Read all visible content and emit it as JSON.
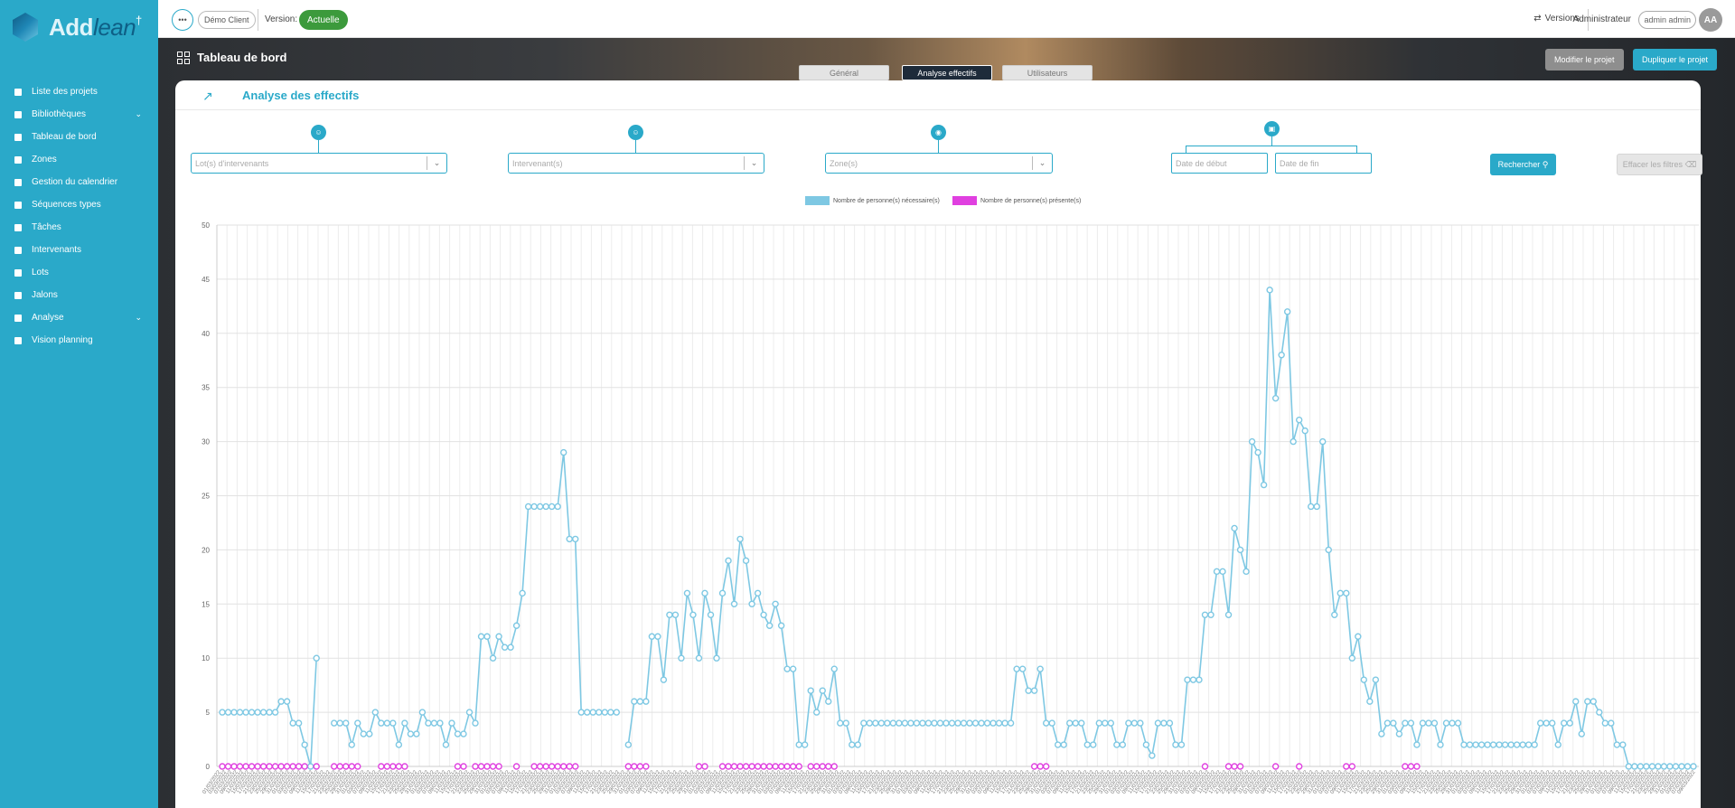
{
  "brand": {
    "part1": "Add",
    "part2": "lean"
  },
  "sidebar": {
    "items": [
      {
        "label": "Liste des projets",
        "icon": "list-icon"
      },
      {
        "label": "Bibliothèques",
        "icon": "library-icon",
        "expand": true
      },
      {
        "label": "Tableau de bord",
        "icon": "dashboard-icon"
      },
      {
        "label": "Zones",
        "icon": "location-icon"
      },
      {
        "label": "Gestion du calendrier",
        "icon": "calendar-icon"
      },
      {
        "label": "Séquences types",
        "icon": "sequence-icon"
      },
      {
        "label": "Tâches",
        "icon": "task-icon"
      },
      {
        "label": "Intervenants",
        "icon": "person-icon"
      },
      {
        "label": "Lots",
        "icon": "lots-icon"
      },
      {
        "label": "Jalons",
        "icon": "flag-icon"
      },
      {
        "label": "Analyse",
        "icon": "analysis-icon",
        "expand": true
      },
      {
        "label": "Vision planning",
        "icon": "planning-icon"
      }
    ]
  },
  "topbar": {
    "client": "Démo Client",
    "version_label": "Version:",
    "version_value": "Actuelle",
    "versions_btn": "Versions",
    "role": "Administrateur",
    "user": "admin admin",
    "avatar": "AA"
  },
  "header": {
    "title": "Tableau de bord",
    "modify": "Modifier le projet",
    "duplicate": "Dupliquer le projet",
    "tabs": [
      "Général",
      "Analyse effectifs",
      "Utilisateurs"
    ]
  },
  "card": {
    "title": "Analyse des effectifs"
  },
  "filters": {
    "lots_placeholder": "Lot(s) d'intervenants",
    "intervenants_placeholder": "Intervenant(s)",
    "zones_placeholder": "Zone(s)",
    "date_start_placeholder": "Date de début",
    "date_end_placeholder": "Date de fin",
    "search": "Rechercher",
    "clear": "Effacer les filtres"
  },
  "chart_data": {
    "type": "line",
    "ylim": [
      0,
      50
    ],
    "yticks": [
      0,
      5,
      10,
      15,
      20,
      25,
      30,
      35,
      40,
      45,
      50
    ],
    "colors": {
      "necessaires": "#7ec8e3",
      "presentes": "#e040e0"
    },
    "series": [
      {
        "name": "Nombre de personne(s) nécessaire(s)",
        "values": [
          5,
          5,
          5,
          5,
          5,
          5,
          5,
          5,
          5,
          5,
          6,
          6,
          4,
          4,
          2,
          0,
          10,
          null,
          null,
          4,
          4,
          4,
          2,
          4,
          3,
          3,
          5,
          4,
          4,
          4,
          2,
          4,
          3,
          3,
          5,
          4,
          4,
          4,
          2,
          4,
          3,
          3,
          5,
          4,
          12,
          12,
          10,
          12,
          11,
          11,
          13,
          16,
          24,
          24,
          24,
          24,
          24,
          24,
          29,
          21,
          21,
          5,
          5,
          5,
          5,
          5,
          5,
          5,
          null,
          2,
          6,
          6,
          6,
          12,
          12,
          8,
          14,
          14,
          10,
          16,
          14,
          10,
          16,
          14,
          10,
          16,
          19,
          15,
          21,
          19,
          15,
          16,
          14,
          13,
          15,
          13,
          9,
          9,
          2,
          2,
          7,
          5,
          7,
          6,
          9,
          4,
          4,
          2,
          2,
          4,
          4,
          4,
          4,
          4,
          4,
          4,
          4,
          4,
          4,
          4,
          4,
          4,
          4,
          4,
          4,
          4,
          4,
          4,
          4,
          4,
          4,
          4,
          4,
          4,
          4,
          9,
          9,
          7,
          7,
          9,
          4,
          4,
          2,
          2,
          4,
          4,
          4,
          2,
          2,
          4,
          4,
          4,
          2,
          2,
          4,
          4,
          4,
          2,
          1,
          4,
          4,
          4,
          2,
          2,
          8,
          8,
          8,
          14,
          14,
          18,
          18,
          14,
          22,
          20,
          18,
          30,
          29,
          26,
          44,
          34,
          38,
          42,
          30,
          32,
          31,
          24,
          24,
          30,
          20,
          14,
          16,
          16,
          10,
          12,
          8,
          6,
          8,
          3,
          4,
          4,
          3,
          4,
          4,
          2,
          4,
          4,
          4,
          2,
          4,
          4,
          4,
          2,
          2,
          2,
          2,
          2,
          2,
          2,
          2,
          2,
          2,
          2,
          2,
          2,
          4,
          4,
          4,
          2,
          4,
          4,
          6,
          3,
          6,
          6,
          5,
          4,
          4,
          2,
          2,
          0,
          0,
          0,
          0,
          0,
          0,
          0,
          0,
          0,
          0,
          0,
          0
        ]
      },
      {
        "name": "Nombre de personne(s) présente(s)",
        "values": [
          0,
          0,
          0,
          0,
          0,
          0,
          0,
          0,
          0,
          0,
          0,
          0,
          0,
          0,
          0,
          null,
          0,
          null,
          null,
          0,
          0,
          0,
          0,
          0,
          null,
          null,
          null,
          0,
          0,
          0,
          0,
          0,
          null,
          null,
          null,
          null,
          null,
          null,
          null,
          null,
          0,
          0,
          null,
          0,
          0,
          0,
          0,
          0,
          null,
          null,
          0,
          null,
          null,
          0,
          0,
          0,
          0,
          0,
          0,
          0,
          0,
          null,
          null,
          null,
          null,
          null,
          null,
          null,
          null,
          0,
          0,
          0,
          0,
          null,
          null,
          null,
          null,
          null,
          null,
          null,
          null,
          0,
          0,
          null,
          null,
          0,
          0,
          0,
          0,
          0,
          0,
          0,
          0,
          0,
          0,
          0,
          0,
          0,
          0,
          null,
          0,
          0,
          0,
          0,
          0,
          null,
          null,
          null,
          null,
          null,
          null,
          null,
          null,
          null,
          null,
          null,
          null,
          null,
          null,
          null,
          null,
          null,
          null,
          null,
          null,
          null,
          null,
          null,
          null,
          null,
          null,
          null,
          null,
          null,
          null,
          null,
          null,
          null,
          0,
          0,
          0,
          null,
          null,
          null,
          null,
          null,
          null,
          null,
          null,
          null,
          null,
          null,
          null,
          null,
          null,
          null,
          null,
          null,
          null,
          null,
          null,
          null,
          null,
          null,
          null,
          null,
          null,
          0,
          null,
          null,
          null,
          0,
          0,
          0,
          null,
          null,
          null,
          null,
          null,
          0,
          null,
          null,
          null,
          0,
          null,
          null,
          null,
          null,
          null,
          null,
          null,
          0,
          0,
          null,
          null,
          null,
          null,
          null,
          null,
          null,
          null,
          0,
          0,
          0,
          null,
          null,
          null,
          null,
          null,
          null,
          null,
          null,
          null,
          null,
          null,
          null,
          null,
          null,
          null,
          null,
          null,
          null,
          null,
          null,
          null,
          null,
          null,
          null,
          null,
          null,
          null,
          null,
          null,
          null,
          null,
          null,
          null,
          null,
          null,
          null,
          null,
          null,
          null,
          null,
          null,
          null,
          null,
          null,
          null,
          null,
          null,
          null,
          null,
          null,
          null,
          null,
          null,
          null,
          null,
          null,
          null,
          null,
          null,
          null,
          null,
          null,
          null,
          null,
          null,
          null,
          null,
          null,
          null,
          null,
          null,
          null,
          null,
          null,
          null
        ]
      }
    ],
    "x_label_samples": [
      "01/03/2022",
      "03/03/2022",
      "07/03/2022",
      "09/03/2022",
      "11/03/2022",
      "15/03/2022",
      "17/03/2022",
      "21/03/2022",
      "23/03/2022",
      "25/03/2022",
      "29/03/2022",
      "31/03/2022"
    ]
  }
}
